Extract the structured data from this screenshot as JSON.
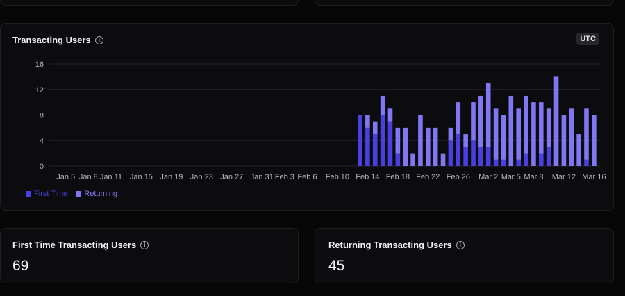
{
  "chart_card": {
    "title": "Transacting Users",
    "timezone_badge": "UTC"
  },
  "stats": {
    "first_time": {
      "label": "First Time Transacting Users",
      "value": "69"
    },
    "returning": {
      "label": "Returning Transacting Users",
      "value": "45"
    }
  },
  "colors": {
    "first_time": "#4a3fe0",
    "returning": "#8277f2",
    "grid": "#26262b",
    "axis_text": "#b4b4ba"
  },
  "chart_data": {
    "type": "bar",
    "stacked": true,
    "ylim": [
      0,
      16
    ],
    "yticks": [
      0,
      4,
      8,
      12,
      16
    ],
    "grid": true,
    "legend_position": "bottom-left",
    "x_start": "2025-01-03",
    "x_end": "2025-03-17",
    "xtick_labels": [
      {
        "date": "2025-01-05",
        "label": "Jan 5"
      },
      {
        "date": "2025-01-08",
        "label": "Jan 8"
      },
      {
        "date": "2025-01-11",
        "label": "Jan 11"
      },
      {
        "date": "2025-01-15",
        "label": "Jan 15"
      },
      {
        "date": "2025-01-19",
        "label": "Jan 19"
      },
      {
        "date": "2025-01-23",
        "label": "Jan 23"
      },
      {
        "date": "2025-01-27",
        "label": "Jan 27"
      },
      {
        "date": "2025-01-31",
        "label": "Jan 31"
      },
      {
        "date": "2025-02-03",
        "label": "Feb 3"
      },
      {
        "date": "2025-02-06",
        "label": "Feb 6"
      },
      {
        "date": "2025-02-10",
        "label": "Feb 10"
      },
      {
        "date": "2025-02-14",
        "label": "Feb 14"
      },
      {
        "date": "2025-02-18",
        "label": "Feb 18"
      },
      {
        "date": "2025-02-22",
        "label": "Feb 22"
      },
      {
        "date": "2025-02-26",
        "label": "Feb 26"
      },
      {
        "date": "2025-03-02",
        "label": "Mar 2"
      },
      {
        "date": "2025-03-05",
        "label": "Mar 5"
      },
      {
        "date": "2025-03-08",
        "label": "Mar 8"
      },
      {
        "date": "2025-03-12",
        "label": "Mar 12"
      },
      {
        "date": "2025-03-16",
        "label": "Mar 16"
      }
    ],
    "series": [
      {
        "name": "First Time"
      },
      {
        "name": "Returning"
      }
    ],
    "bars": [
      {
        "date": "2025-02-13",
        "first_time": 8,
        "returning": 0
      },
      {
        "date": "2025-02-14",
        "first_time": 6,
        "returning": 2
      },
      {
        "date": "2025-02-15",
        "first_time": 5,
        "returning": 2
      },
      {
        "date": "2025-02-16",
        "first_time": 8,
        "returning": 3
      },
      {
        "date": "2025-02-17",
        "first_time": 7,
        "returning": 2
      },
      {
        "date": "2025-02-18",
        "first_time": 2,
        "returning": 4
      },
      {
        "date": "2025-02-19",
        "first_time": 0,
        "returning": 6
      },
      {
        "date": "2025-02-20",
        "first_time": 0,
        "returning": 2
      },
      {
        "date": "2025-02-21",
        "first_time": 0,
        "returning": 8
      },
      {
        "date": "2025-02-22",
        "first_time": 0,
        "returning": 6
      },
      {
        "date": "2025-02-23",
        "first_time": 0,
        "returning": 6
      },
      {
        "date": "2025-02-24",
        "first_time": 0,
        "returning": 2
      },
      {
        "date": "2025-02-25",
        "first_time": 4,
        "returning": 2
      },
      {
        "date": "2025-02-26",
        "first_time": 5,
        "returning": 5
      },
      {
        "date": "2025-02-27",
        "first_time": 3,
        "returning": 2
      },
      {
        "date": "2025-02-28",
        "first_time": 4,
        "returning": 6
      },
      {
        "date": "2025-03-01",
        "first_time": 3,
        "returning": 8
      },
      {
        "date": "2025-03-02",
        "first_time": 3,
        "returning": 10
      },
      {
        "date": "2025-03-03",
        "first_time": 1,
        "returning": 8
      },
      {
        "date": "2025-03-04",
        "first_time": 1,
        "returning": 7
      },
      {
        "date": "2025-03-05",
        "first_time": 0,
        "returning": 11
      },
      {
        "date": "2025-03-06",
        "first_time": 1,
        "returning": 8
      },
      {
        "date": "2025-03-07",
        "first_time": 2,
        "returning": 9
      },
      {
        "date": "2025-03-08",
        "first_time": 0,
        "returning": 10
      },
      {
        "date": "2025-03-09",
        "first_time": 2,
        "returning": 8
      },
      {
        "date": "2025-03-10",
        "first_time": 3,
        "returning": 6
      },
      {
        "date": "2025-03-11",
        "first_time": 0,
        "returning": 14
      },
      {
        "date": "2025-03-12",
        "first_time": 0,
        "returning": 8
      },
      {
        "date": "2025-03-13",
        "first_time": 0,
        "returning": 9
      },
      {
        "date": "2025-03-14",
        "first_time": 0,
        "returning": 5
      },
      {
        "date": "2025-03-15",
        "first_time": 1,
        "returning": 8
      },
      {
        "date": "2025-03-16",
        "first_time": 0,
        "returning": 8
      }
    ]
  }
}
